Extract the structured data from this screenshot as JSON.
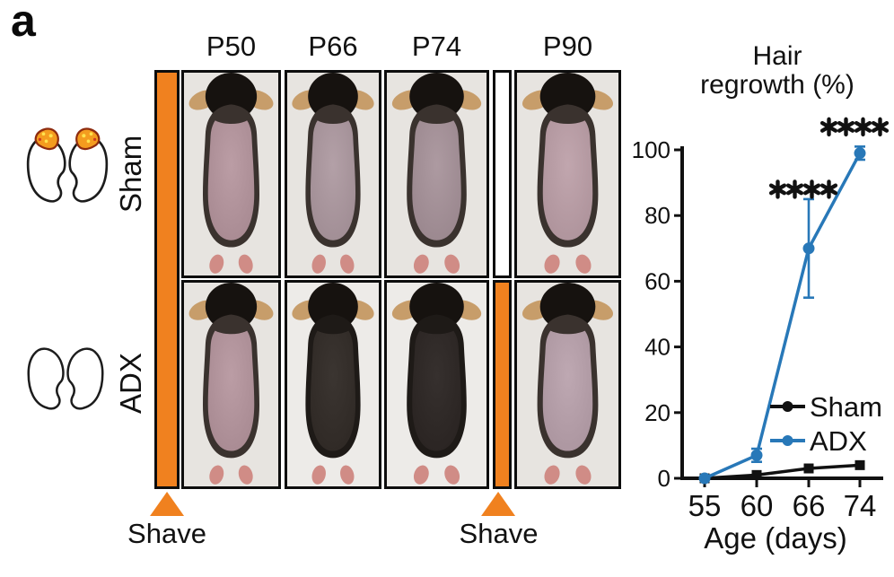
{
  "panel_label": "a",
  "colors": {
    "accent_orange": "#F0811F",
    "adx_blue": "#2878B8",
    "ink_black": "#111111",
    "photo_background": "#e7e4e0",
    "shaved_skin": "#a5888f",
    "fur_dark": "#2d2723",
    "adrenal_orange": "#F49C1F",
    "adrenal_speckle": "#FFE34D"
  },
  "photo_panel": {
    "column_headers": [
      "P50",
      "P66",
      "P74",
      "P90"
    ],
    "rows": [
      {
        "label": "Sham",
        "kidney_icon": "kidneys-with-adrenals",
        "photos": [
          {
            "column": "P50",
            "state": "shaved",
            "skin": "#a5878f"
          },
          {
            "column": "P66",
            "state": "shaved",
            "skin": "#9d8a91"
          },
          {
            "column": "P74",
            "state": "shaved",
            "skin": "#97848b"
          },
          {
            "column": "P90",
            "state": "shaved",
            "skin": "#ab9098"
          }
        ]
      },
      {
        "label": "ADX",
        "kidney_icon": "kidneys-without-adrenals",
        "photos": [
          {
            "column": "P50",
            "state": "shaved",
            "skin": "#a5878f"
          },
          {
            "column": "P66",
            "state": "furred",
            "skin": "#2d2723"
          },
          {
            "column": "P74",
            "state": "furred",
            "skin": "#282220"
          },
          {
            "column": "P90",
            "state": "shaved",
            "skin": "#a8929c"
          }
        ]
      }
    ],
    "shave_markers": [
      {
        "label": "Shave"
      },
      {
        "label": "Shave"
      }
    ]
  },
  "chart_data": {
    "type": "line",
    "title": "Hair regrowth (%)",
    "title_lines": [
      "Hair",
      "regrowth (%)"
    ],
    "xlabel": "Age (days)",
    "x": [
      55,
      60,
      66,
      74
    ],
    "xtick_labels": [
      "55",
      "60",
      "66",
      "74"
    ],
    "ylim": [
      0,
      100
    ],
    "yticks": [
      0,
      20,
      40,
      60,
      80,
      100
    ],
    "grid": false,
    "legend_position": "inside-lower-right",
    "series": [
      {
        "name": "Sham",
        "color": "#111111",
        "marker": "square",
        "values": [
          0,
          1,
          3,
          4
        ],
        "errors": [
          0,
          0,
          0,
          0
        ]
      },
      {
        "name": "ADX",
        "color": "#2878B8",
        "marker": "circle",
        "values": [
          0,
          7,
          70,
          99
        ],
        "errors": [
          0,
          2,
          15,
          2
        ]
      }
    ],
    "annotations": [
      {
        "text": "****",
        "x": 66,
        "y": 88
      },
      {
        "text": "****",
        "x": 74,
        "y": 107
      }
    ]
  }
}
